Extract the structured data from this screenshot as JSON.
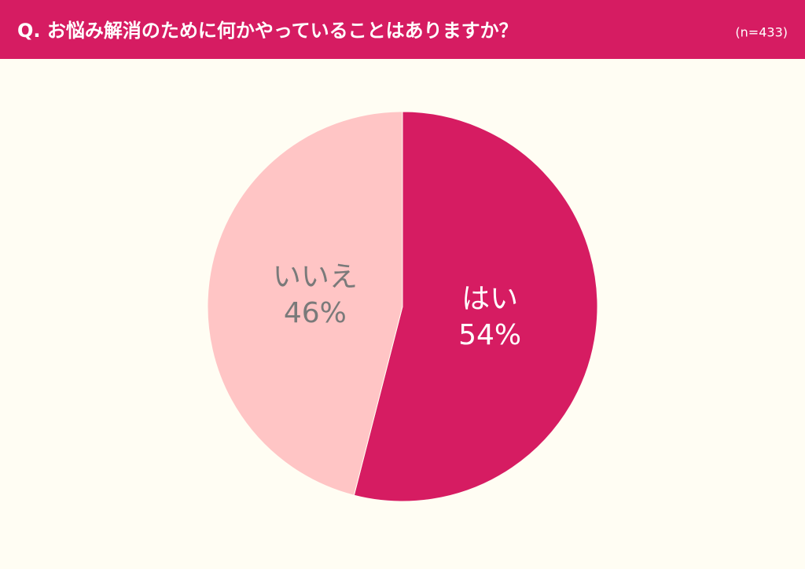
{
  "chart_data": {
    "type": "pie",
    "title": "Q. お悩み解消のために何かやっていることはありますか？",
    "subtitle": "(n=433)",
    "categories": [
      "はい",
      "いいえ"
    ],
    "values": [
      54,
      46
    ],
    "value_labels": [
      "54%",
      "46%"
    ],
    "colors": [
      "#d61c62",
      "#ffc5c5"
    ],
    "label_colors": [
      "#ffffff",
      "#7a7a7a"
    ]
  }
}
